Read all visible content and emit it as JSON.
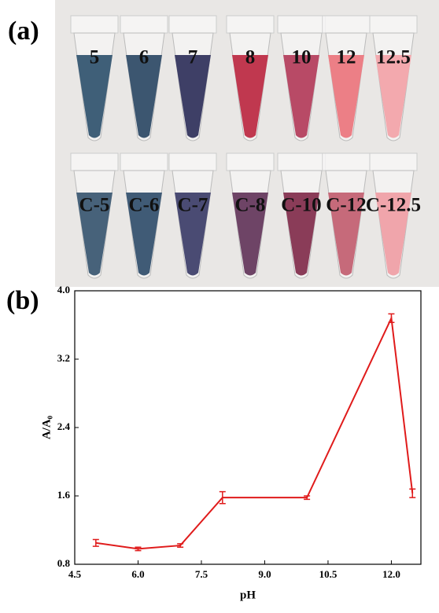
{
  "photo": {
    "label": "(a)",
    "background": "#e9e7e5",
    "top_row": [
      {
        "label": "5",
        "color": "#3f5f78"
      },
      {
        "label": "6",
        "color": "#3c5670"
      },
      {
        "label": "7",
        "color": "#3e3f66"
      },
      {
        "label": "8",
        "color": "#c0384f"
      },
      {
        "label": "10",
        "color": "#b84a66"
      },
      {
        "label": "12",
        "color": "#ec7f86"
      },
      {
        "label": "12.5",
        "color": "#f3a9ae"
      }
    ],
    "bottom_row": [
      {
        "label": "C-5",
        "color": "#47627a"
      },
      {
        "label": "C-6",
        "color": "#405b76"
      },
      {
        "label": "C-7",
        "color": "#4a4b73"
      },
      {
        "label": "C-8",
        "color": "#6e4466"
      },
      {
        "label": "C-10",
        "color": "#8a3c58"
      },
      {
        "label": "C-12",
        "color": "#c66a7a"
      },
      {
        "label": "C-12.5",
        "color": "#f0a5ab"
      }
    ]
  },
  "chart_data": {
    "type": "line",
    "panel_label": "(b)",
    "xlabel": "pH",
    "ylabel": "A/A₀",
    "x": [
      5,
      6,
      7,
      8,
      10,
      12,
      12.5
    ],
    "values": [
      1.05,
      0.98,
      1.02,
      1.58,
      1.58,
      3.68,
      1.63
    ],
    "errors": [
      0.04,
      0.02,
      0.02,
      0.07,
      0.02,
      0.05,
      0.05
    ],
    "color": "#e01b1b",
    "xlim": [
      4.5,
      12.7
    ],
    "xticks": [
      4.5,
      {
        "value": 6,
        "label": "6.0"
      },
      7.5,
      {
        "value": 9,
        "label": "9.0"
      },
      10.5,
      {
        "value": 12,
        "label": "12.0"
      }
    ],
    "ylim": [
      0.8,
      4.0
    ],
    "yticks": [
      0.8,
      1.6,
      2.4,
      3.2,
      {
        "value": 4,
        "label": "4.0"
      }
    ]
  }
}
